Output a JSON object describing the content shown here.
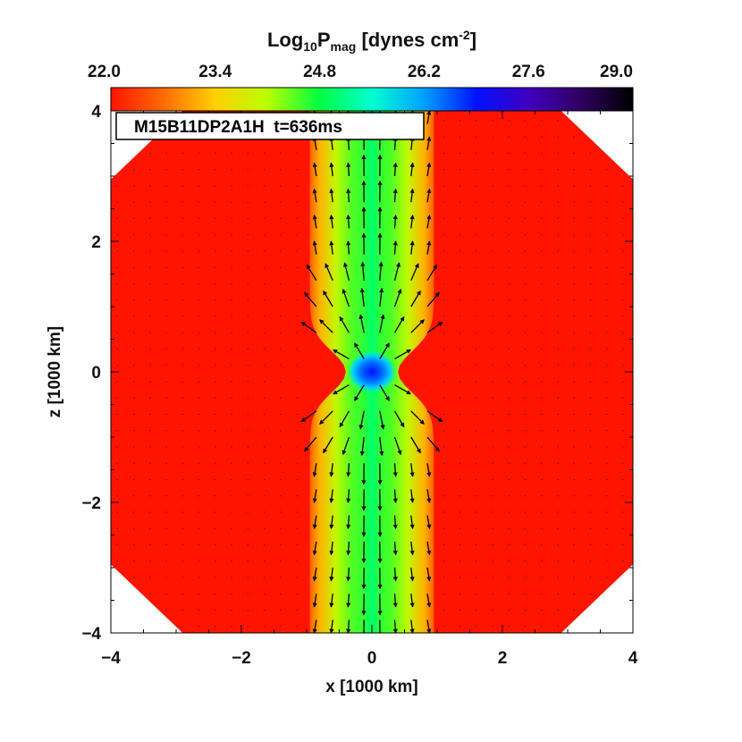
{
  "chart_data": {
    "type": "heatmap",
    "title": "Log10Pmag [dynes cm-2]",
    "colorbar": {
      "label": {
        "pre": "Log",
        "sub1": "10",
        "mid": "P",
        "sub2": "mag",
        "post": " [dynes cm",
        "sup": "-2",
        "end": "]"
      },
      "range": [
        22.0,
        29.0
      ],
      "ticks": [
        "22.0",
        "23.4",
        "24.8",
        "26.2",
        "27.6",
        "29.0"
      ],
      "colors": [
        "#ff1400",
        "#ff6a00",
        "#ffd000",
        "#b8ff00",
        "#00ff40",
        "#00ffd0",
        "#00a0ff",
        "#0010ff",
        "#4000c0",
        "#300060",
        "#000000"
      ]
    },
    "annotation": "M15B11DP2A1H  t=636ms",
    "xlabel": "x [1000 km]",
    "ylabel": "z [1000 km]",
    "xlim": [
      -4,
      4
    ],
    "ylim": [
      -4,
      4
    ],
    "x_ticks": [
      "−4",
      "−2",
      "0",
      "2",
      "4"
    ],
    "y_ticks": [
      "−4",
      "−2",
      "0",
      "2",
      "4"
    ],
    "background_value": 22.0,
    "jet_profile": [
      {
        "abs_x": 0.0,
        "value": 25.0
      },
      {
        "abs_x": 0.15,
        "value": 24.6
      },
      {
        "abs_x": 0.3,
        "value": 24.5
      },
      {
        "abs_x": 0.55,
        "value": 24.0
      },
      {
        "abs_x": 0.8,
        "value": 23.2
      },
      {
        "abs_x": 1.0,
        "value": 22.4
      }
    ],
    "core": {
      "x": 0.0,
      "z": 0.0,
      "value": 27.0
    },
    "vector_field": "magnetic field vectors (arrows)"
  }
}
